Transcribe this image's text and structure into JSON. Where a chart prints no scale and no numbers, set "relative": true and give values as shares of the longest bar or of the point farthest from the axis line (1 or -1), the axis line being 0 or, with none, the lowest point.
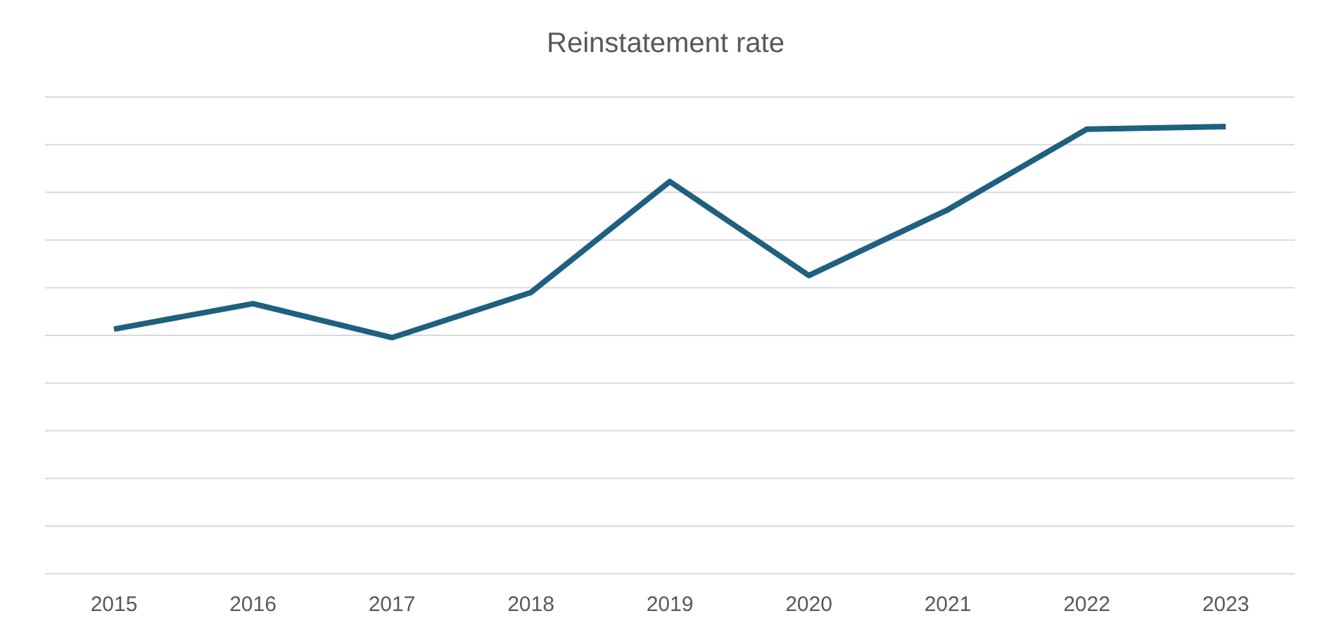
{
  "chart_data": {
    "type": "line",
    "title": "Reinstatement rate",
    "relative": true,
    "grid": "y",
    "categories": [
      "2015",
      "2016",
      "2017",
      "2018",
      "2019",
      "2020",
      "2021",
      "2022",
      "2023"
    ],
    "series": [
      {
        "color": "#1f6080",
        "values": [
          0.547,
          0.604,
          0.528,
          0.629,
          0.877,
          0.667,
          0.814,
          0.994,
          1
        ]
      }
    ],
    "marker": "none",
    "line_style": "solid"
  }
}
